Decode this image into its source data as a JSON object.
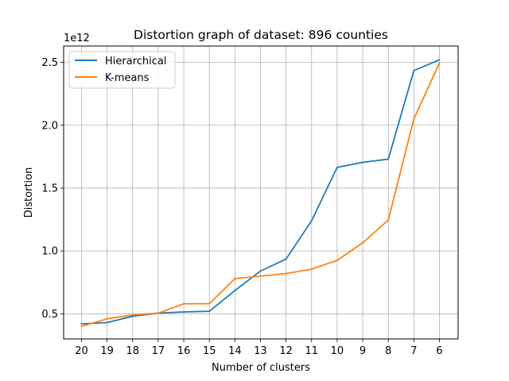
{
  "chart_data": {
    "type": "line",
    "title": "Distortion graph of dataset: 896 counties",
    "xlabel": "Number of clusters",
    "ylabel": "Distortion",
    "y_offset_label": "1e12",
    "categories": [
      "20",
      "19",
      "18",
      "17",
      "16",
      "15",
      "14",
      "13",
      "12",
      "11",
      "10",
      "9",
      "8",
      "7",
      "6"
    ],
    "y_scale": 1000000000000.0,
    "ylim": [
      0.3,
      2.63
    ],
    "yticks": [
      0.5,
      1.0,
      1.5,
      2.0,
      2.5
    ],
    "ytick_labels": [
      "0.5",
      "1.0",
      "1.5",
      "2.0",
      "2.5"
    ],
    "grid": true,
    "legend_position": "top-left",
    "series": [
      {
        "name": "Hierarchical",
        "color": "#1f77b4",
        "values": [
          0.42,
          0.43,
          0.48,
          0.505,
          0.515,
          0.52,
          0.685,
          0.84,
          0.935,
          1.24,
          1.665,
          1.705,
          1.73,
          2.435,
          2.52
        ]
      },
      {
        "name": "K-means",
        "color": "#ff7f0e",
        "values": [
          0.4,
          0.46,
          0.49,
          0.505,
          0.58,
          0.58,
          0.78,
          0.8,
          0.82,
          0.855,
          0.925,
          1.065,
          1.245,
          2.05,
          2.495
        ]
      }
    ]
  }
}
